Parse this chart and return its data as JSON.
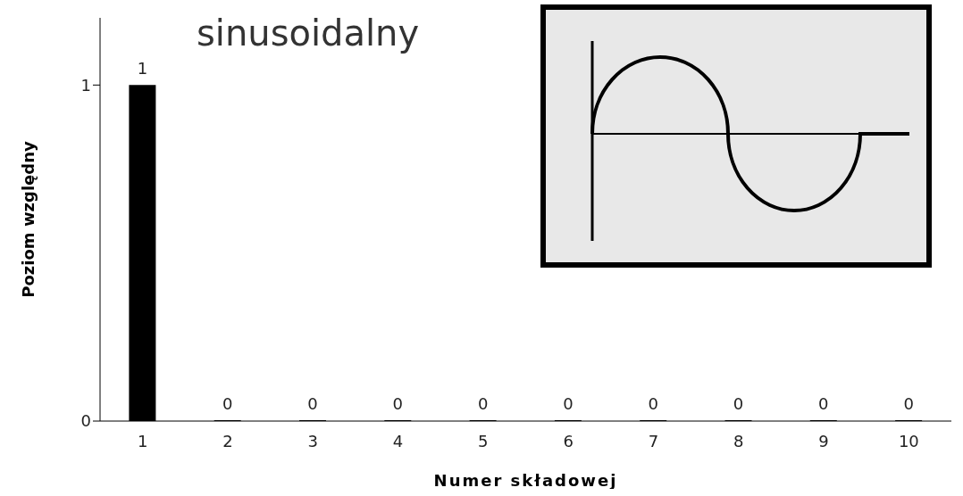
{
  "chart_data": {
    "type": "bar",
    "title": "sinusoidalny",
    "xlabel": "Numer składowej",
    "ylabel": "Poziom względny",
    "categories": [
      "1",
      "2",
      "3",
      "4",
      "5",
      "6",
      "7",
      "8",
      "9",
      "10"
    ],
    "values": [
      1,
      0,
      0,
      0,
      0,
      0,
      0,
      0,
      0,
      0
    ],
    "color": "#000000",
    "ylim": [
      0,
      1.2
    ],
    "yticks": [
      0,
      1
    ],
    "grid": false,
    "data_labels": true
  }
}
